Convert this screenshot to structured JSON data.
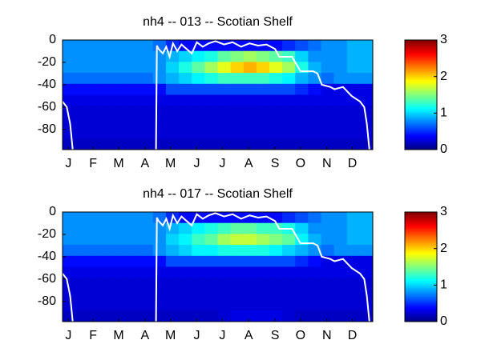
{
  "chart_data": [
    {
      "type": "heatmap",
      "title": "nh4 -- 013 -- Scotian Shelf",
      "colormap": "jet",
      "xlim": [
        0,
        365
      ],
      "ylim": [
        -98,
        0
      ],
      "clim": [
        0,
        3
      ],
      "xticks": [
        {
          "value": 7,
          "label": "J"
        },
        {
          "value": 36,
          "label": "F"
        },
        {
          "value": 66,
          "label": "M"
        },
        {
          "value": 97,
          "label": "A"
        },
        {
          "value": 127,
          "label": "M"
        },
        {
          "value": 158,
          "label": "J"
        },
        {
          "value": 188,
          "label": "J"
        },
        {
          "value": 219,
          "label": "A"
        },
        {
          "value": 250,
          "label": "S"
        },
        {
          "value": 280,
          "label": "O"
        },
        {
          "value": 311,
          "label": "N"
        },
        {
          "value": 341,
          "label": "D"
        }
      ],
      "yticks": [
        0,
        -20,
        -40,
        -60,
        -80
      ],
      "cticks": [
        0,
        1,
        2,
        3
      ],
      "values": [
        [
          0.8,
          0.8,
          0.8,
          0.8,
          0.8,
          0.8,
          0.8,
          0.7,
          0.5,
          0.4,
          0.4,
          0.4,
          0.4,
          0.4,
          0.4,
          0.4,
          0.4,
          0.5,
          0.6,
          0.7,
          0.8,
          0.8,
          0.9,
          0.9
        ],
        [
          0.8,
          0.8,
          0.8,
          0.8,
          0.8,
          0.8,
          0.8,
          0.8,
          0.9,
          1.0,
          1.1,
          1.2,
          1.4,
          1.5,
          1.6,
          1.5,
          1.4,
          1.3,
          1.0,
          0.8,
          0.8,
          0.8,
          0.9,
          0.9
        ],
        [
          0.8,
          0.8,
          0.8,
          0.8,
          0.8,
          0.8,
          0.8,
          0.8,
          1.0,
          1.2,
          1.4,
          1.6,
          1.8,
          2.0,
          2.1,
          2.0,
          1.8,
          1.6,
          1.2,
          0.9,
          0.8,
          0.8,
          0.9,
          0.9
        ],
        [
          0.7,
          0.7,
          0.7,
          0.7,
          0.7,
          0.7,
          0.7,
          0.8,
          0.9,
          1.0,
          1.1,
          1.2,
          1.3,
          1.3,
          1.3,
          1.3,
          1.2,
          1.1,
          0.9,
          0.8,
          0.7,
          0.8,
          0.8,
          0.8
        ],
        [
          0.4,
          0.4,
          0.4,
          0.4,
          0.4,
          0.4,
          0.4,
          0.4,
          0.6,
          0.6,
          0.6,
          0.6,
          0.6,
          0.6,
          0.6,
          0.6,
          0.6,
          0.6,
          0.5,
          0.4,
          0.3,
          0.3,
          0.3,
          0.3
        ],
        [
          0.3,
          0.3,
          0.3,
          0.3,
          0.3,
          0.3,
          0.3,
          0.3,
          0.3,
          0.3,
          0.3,
          0.3,
          0.3,
          0.3,
          0.3,
          0.3,
          0.3,
          0.3,
          0.3,
          0.3,
          0.3,
          0.3,
          0.3,
          0.3
        ],
        [
          0.25,
          0.25,
          0.25,
          0.25,
          0.25,
          0.25,
          0.25,
          0.25,
          0.25,
          0.25,
          0.25,
          0.25,
          0.25,
          0.25,
          0.25,
          0.25,
          0.25,
          0.25,
          0.25,
          0.25,
          0.25,
          0.25,
          0.25,
          0.25
        ],
        [
          0.25,
          0.25,
          0.25,
          0.25,
          0.25,
          0.25,
          0.25,
          0.25,
          0.25,
          0.25,
          0.25,
          0.25,
          0.25,
          0.25,
          0.25,
          0.25,
          0.25,
          0.25,
          0.25,
          0.25,
          0.25,
          0.25,
          0.25,
          0.25
        ],
        [
          0.25,
          0.25,
          0.25,
          0.25,
          0.25,
          0.25,
          0.25,
          0.25,
          0.25,
          0.25,
          0.25,
          0.25,
          0.25,
          0.25,
          0.25,
          0.25,
          0.25,
          0.25,
          0.25,
          0.25,
          0.25,
          0.25,
          0.25,
          0.25
        ],
        [
          0.2,
          0.2,
          0.2,
          0.2,
          0.2,
          0.2,
          0.2,
          0.2,
          0.2,
          0.2,
          0.2,
          0.2,
          0.2,
          0.2,
          0.2,
          0.2,
          0.2,
          0.2,
          0.2,
          0.2,
          0.2,
          0.2,
          0.2,
          0.2
        ]
      ],
      "series": [
        {
          "color": "#ffffff",
          "x": [
            0,
            5,
            9,
            12,
            13,
            110,
            111,
            113,
            118,
            122,
            126,
            130,
            135,
            140,
            146,
            152,
            158,
            165,
            172,
            180,
            190,
            200,
            210,
            220,
            230,
            240,
            250,
            255,
            256,
            270,
            280,
            281,
            295,
            300,
            305,
            315,
            320,
            330,
            340,
            350,
            355,
            358,
            361
          ],
          "values": [
            -55,
            -60,
            -75,
            -98,
            null,
            -98,
            -5,
            -8,
            -12,
            -6,
            -15,
            -3,
            -10,
            -4,
            -8,
            -12,
            -2,
            -6,
            -3,
            -1,
            -4,
            -2,
            -6,
            -3,
            -5,
            -4,
            -8,
            -15,
            -15,
            -15,
            -28,
            -28,
            -28,
            -30,
            -40,
            -42,
            -44,
            -42,
            -50,
            -55,
            -60,
            -75,
            -98
          ]
        }
      ]
    },
    {
      "type": "heatmap",
      "title": "nh4 -- 017 -- Scotian Shelf",
      "colormap": "jet",
      "xlim": [
        0,
        365
      ],
      "ylim": [
        -98,
        0
      ],
      "clim": [
        0,
        3
      ],
      "xticks": [
        {
          "value": 7,
          "label": "J"
        },
        {
          "value": 36,
          "label": "F"
        },
        {
          "value": 66,
          "label": "M"
        },
        {
          "value": 97,
          "label": "A"
        },
        {
          "value": 127,
          "label": "M"
        },
        {
          "value": 158,
          "label": "J"
        },
        {
          "value": 188,
          "label": "J"
        },
        {
          "value": 219,
          "label": "A"
        },
        {
          "value": 250,
          "label": "S"
        },
        {
          "value": 280,
          "label": "O"
        },
        {
          "value": 311,
          "label": "N"
        },
        {
          "value": 341,
          "label": "D"
        }
      ],
      "yticks": [
        0,
        -20,
        -40,
        -60,
        -80
      ],
      "cticks": [
        0,
        1,
        2,
        3
      ],
      "values": [
        [
          0.8,
          0.8,
          0.8,
          0.8,
          0.8,
          0.8,
          0.8,
          0.7,
          0.5,
          0.4,
          0.4,
          0.4,
          0.4,
          0.4,
          0.4,
          0.4,
          0.4,
          0.5,
          0.6,
          0.7,
          0.8,
          0.8,
          0.9,
          0.9
        ],
        [
          0.8,
          0.8,
          0.8,
          0.8,
          0.8,
          0.8,
          0.8,
          0.8,
          0.9,
          1.0,
          1.1,
          1.2,
          1.3,
          1.4,
          1.4,
          1.3,
          1.3,
          1.2,
          1.0,
          0.8,
          0.8,
          0.8,
          0.9,
          0.9
        ],
        [
          0.8,
          0.8,
          0.8,
          0.8,
          0.8,
          0.8,
          0.8,
          0.8,
          1.0,
          1.1,
          1.3,
          1.4,
          1.6,
          1.7,
          1.7,
          1.6,
          1.5,
          1.4,
          1.1,
          0.9,
          0.8,
          0.8,
          0.9,
          0.9
        ],
        [
          0.7,
          0.7,
          0.7,
          0.7,
          0.7,
          0.7,
          0.7,
          0.8,
          0.9,
          1.0,
          1.1,
          1.1,
          1.2,
          1.2,
          1.2,
          1.2,
          1.1,
          1.0,
          0.9,
          0.8,
          0.7,
          0.8,
          0.8,
          0.8
        ],
        [
          0.4,
          0.4,
          0.4,
          0.4,
          0.4,
          0.4,
          0.4,
          0.4,
          0.6,
          0.6,
          0.6,
          0.6,
          0.6,
          0.6,
          0.6,
          0.6,
          0.6,
          0.6,
          0.5,
          0.4,
          0.3,
          0.3,
          0.3,
          0.3
        ],
        [
          0.3,
          0.3,
          0.3,
          0.3,
          0.3,
          0.3,
          0.3,
          0.3,
          0.3,
          0.3,
          0.3,
          0.3,
          0.3,
          0.3,
          0.3,
          0.3,
          0.3,
          0.3,
          0.3,
          0.3,
          0.3,
          0.3,
          0.3,
          0.3
        ],
        [
          0.25,
          0.25,
          0.25,
          0.25,
          0.25,
          0.25,
          0.25,
          0.25,
          0.25,
          0.25,
          0.25,
          0.25,
          0.25,
          0.25,
          0.25,
          0.25,
          0.25,
          0.25,
          0.25,
          0.25,
          0.25,
          0.25,
          0.25,
          0.25
        ],
        [
          0.25,
          0.25,
          0.25,
          0.25,
          0.25,
          0.25,
          0.25,
          0.25,
          0.25,
          0.25,
          0.25,
          0.25,
          0.25,
          0.25,
          0.25,
          0.25,
          0.25,
          0.25,
          0.25,
          0.25,
          0.25,
          0.25,
          0.25,
          0.25
        ],
        [
          0.25,
          0.25,
          0.25,
          0.25,
          0.25,
          0.25,
          0.25,
          0.25,
          0.25,
          0.25,
          0.25,
          0.25,
          0.25,
          0.25,
          0.25,
          0.25,
          0.25,
          0.25,
          0.25,
          0.25,
          0.25,
          0.25,
          0.25,
          0.25
        ],
        [
          0.2,
          0.2,
          0.2,
          0.2,
          0.2,
          0.2,
          0.2,
          0.2,
          0.2,
          0.2,
          0.2,
          0.2,
          0.25,
          0.3,
          0.3,
          0.3,
          0.3,
          0.25,
          0.2,
          0.2,
          0.2,
          0.2,
          0.2,
          0.2
        ]
      ],
      "series": [
        {
          "color": "#ffffff",
          "x": [
            0,
            5,
            9,
            12,
            13,
            110,
            111,
            113,
            118,
            122,
            126,
            130,
            135,
            140,
            146,
            152,
            158,
            165,
            172,
            180,
            190,
            200,
            210,
            220,
            230,
            240,
            250,
            255,
            256,
            270,
            280,
            281,
            295,
            300,
            305,
            315,
            320,
            330,
            340,
            350,
            355,
            358,
            361
          ],
          "values": [
            -55,
            -60,
            -75,
            -98,
            null,
            -98,
            -5,
            -8,
            -12,
            -6,
            -15,
            -3,
            -10,
            -4,
            -8,
            -12,
            -2,
            -6,
            -3,
            -1,
            -4,
            -2,
            -6,
            -3,
            -5,
            -4,
            -8,
            -15,
            -15,
            -15,
            -28,
            -28,
            -28,
            -30,
            -40,
            -42,
            -44,
            -42,
            -50,
            -55,
            -60,
            -75,
            -98
          ]
        }
      ]
    }
  ]
}
